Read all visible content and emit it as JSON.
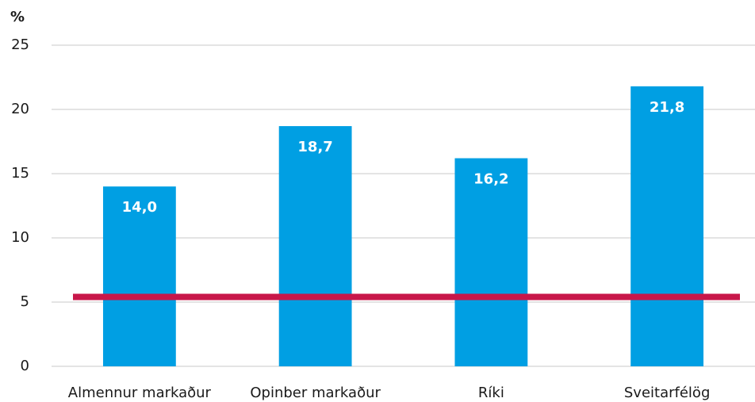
{
  "chart_data": {
    "type": "bar",
    "y_axis_label": "%",
    "categories": [
      "Almennur markaður",
      "Opinber markaður",
      "Ríki",
      "Sveitarfélög"
    ],
    "values": [
      14.0,
      18.7,
      16.2,
      21.8
    ],
    "value_labels": [
      "14,0",
      "18,7",
      "16,2",
      "21,8"
    ],
    "color": "#009fe3",
    "reference_line": {
      "value": 5.4,
      "color": "#c8174a"
    },
    "ylim": [
      0,
      25
    ],
    "yticks": [
      0,
      5,
      10,
      15,
      20,
      25
    ],
    "grid": true
  }
}
